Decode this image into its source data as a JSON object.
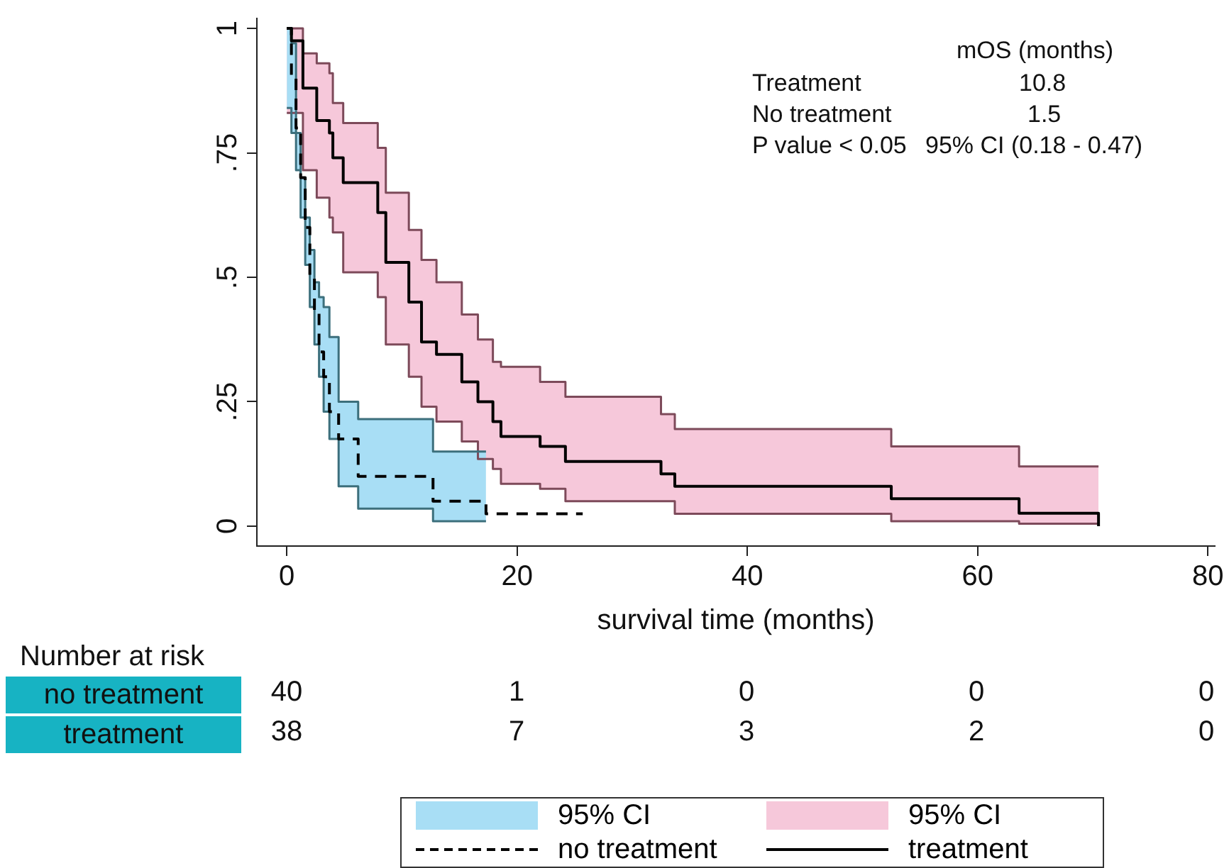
{
  "chart_data": {
    "type": "step",
    "xlabel": "survival time (months)",
    "xlim": [
      -2.6,
      80.6
    ],
    "xticks": [
      0,
      20,
      40,
      60,
      80
    ],
    "ylim": [
      -0.04,
      1.02
    ],
    "yticks": [
      {
        "value": 0,
        "label": "0"
      },
      {
        "value": 0.25,
        "label": ".25"
      },
      {
        "value": 0.5,
        "label": ".5"
      },
      {
        "value": 0.75,
        "label": ".75"
      },
      {
        "value": 1,
        "label": "1"
      }
    ],
    "grid": false,
    "legend": "bottom",
    "marker": "none",
    "series": [
      {
        "name": "95% CI",
        "type": "area",
        "color": "#a8def5",
        "x": [
          0,
          0.4,
          0.8,
          1.2,
          1.6,
          2.0,
          2.4,
          2.8,
          3.2,
          3.7,
          4.5,
          6.2,
          12.7,
          17.3
        ],
        "values": [
          null,
          null,
          null,
          null,
          null,
          null,
          null,
          null,
          null,
          null,
          null,
          null,
          null,
          null
        ],
        "lower": [
          0.84,
          0.79,
          0.715,
          0.62,
          0.525,
          0.44,
          0.365,
          0.3,
          0.23,
          0.175,
          0.08,
          0.035,
          0.01,
          0.01
        ],
        "upper": [
          1,
          0.97,
          0.79,
          0.7,
          0.62,
          0.555,
          0.49,
          0.46,
          0.44,
          0.38,
          0.25,
          0.215,
          0.15,
          0.15
        ]
      },
      {
        "type": "step",
        "color": "#3c6f7c",
        "x": [
          0,
          0.4,
          0.8,
          1.2,
          1.6,
          2.0,
          2.4,
          2.8,
          3.2,
          3.7,
          4.5,
          6.2,
          12.7,
          17.3
        ],
        "values": [
          0.84,
          0.79,
          0.715,
          0.62,
          0.525,
          0.44,
          0.365,
          0.3,
          0.23,
          0.175,
          0.08,
          0.035,
          0.01,
          0.01
        ]
      },
      {
        "type": "step",
        "color": "#3c6f7c",
        "x": [
          0,
          0.4,
          0.8,
          1.2,
          1.6,
          2.0,
          2.4,
          2.8,
          3.2,
          3.7,
          4.5,
          6.2,
          12.7,
          17.3
        ],
        "values": [
          1,
          0.97,
          0.79,
          0.7,
          0.62,
          0.555,
          0.49,
          0.46,
          0.44,
          0.38,
          0.25,
          0.215,
          0.15,
          0.15
        ]
      },
      {
        "name": "no treatment",
        "color": "#000000",
        "line_style": "dashed",
        "x": [
          0,
          0.4,
          0.8,
          1.2,
          1.6,
          2.0,
          2.4,
          2.8,
          3.2,
          3.7,
          4.5,
          6.2,
          12.7,
          17.3,
          25.7
        ],
        "values": [
          1,
          0.9,
          0.8,
          0.7,
          0.6,
          0.5,
          0.43,
          0.35,
          0.3,
          0.23,
          0.175,
          0.1,
          0.05,
          0.025,
          0.025
        ]
      },
      {
        "name": "95% CI",
        "type": "area",
        "color": "#f6c8da",
        "x": [
          0,
          0.4,
          1.4,
          2.6,
          3.7,
          4.0,
          4.9,
          7.9,
          8.6,
          10.6,
          11.7,
          13.0,
          15.2,
          16.6,
          17.9,
          18.6,
          22.0,
          24.2,
          32.5,
          33.7,
          52.5,
          63.6,
          70.5
        ],
        "values": [
          null,
          null,
          null,
          null,
          null,
          null,
          null,
          null,
          null,
          null,
          null,
          null,
          null,
          null,
          null,
          null,
          null,
          null,
          null,
          null,
          null,
          null,
          null
        ],
        "lower": [
          0.83,
          0.83,
          0.715,
          0.66,
          0.62,
          0.59,
          0.51,
          0.46,
          0.365,
          0.3,
          0.24,
          0.21,
          0.17,
          0.135,
          0.115,
          0.085,
          0.075,
          0.05,
          0.05,
          0.025,
          0.01,
          0.005,
          0.005
        ],
        "upper": [
          1,
          1,
          0.95,
          0.93,
          0.91,
          0.85,
          0.81,
          0.76,
          0.67,
          0.595,
          0.535,
          0.49,
          0.425,
          0.375,
          0.33,
          0.32,
          0.29,
          0.26,
          0.225,
          0.195,
          0.16,
          0.12,
          0.12
        ]
      },
      {
        "type": "step",
        "color": "#7d4a5a",
        "x": [
          0,
          0.4,
          1.4,
          2.6,
          3.7,
          4.0,
          4.9,
          7.9,
          8.6,
          10.6,
          11.7,
          13.0,
          15.2,
          16.6,
          17.9,
          18.6,
          22.0,
          24.2,
          32.5,
          33.7,
          52.5,
          63.6,
          70.5
        ],
        "values": [
          0.83,
          0.83,
          0.715,
          0.66,
          0.62,
          0.59,
          0.51,
          0.46,
          0.365,
          0.3,
          0.24,
          0.21,
          0.17,
          0.135,
          0.115,
          0.085,
          0.075,
          0.05,
          0.05,
          0.025,
          0.01,
          0.005,
          0.005
        ]
      },
      {
        "type": "step",
        "color": "#7d4a5a",
        "x": [
          0,
          0.4,
          1.4,
          2.6,
          3.7,
          4.0,
          4.9,
          7.9,
          8.6,
          10.6,
          11.7,
          13.0,
          15.2,
          16.6,
          17.9,
          18.6,
          22.0,
          24.2,
          32.5,
          33.7,
          52.5,
          63.6,
          70.5
        ],
        "values": [
          1,
          1,
          0.95,
          0.93,
          0.91,
          0.85,
          0.81,
          0.76,
          0.67,
          0.595,
          0.535,
          0.49,
          0.425,
          0.375,
          0.33,
          0.32,
          0.29,
          0.26,
          0.225,
          0.195,
          0.16,
          0.12,
          0.12
        ]
      },
      {
        "name": "treatment",
        "color": "#000000",
        "line_style": "solid",
        "x": [
          0,
          0.4,
          1.4,
          2.6,
          3.7,
          4.0,
          4.9,
          7.9,
          8.6,
          10.6,
          11.7,
          13.0,
          15.2,
          16.6,
          17.9,
          18.6,
          22.0,
          24.2,
          32.5,
          33.7,
          52.5,
          63.6,
          70.5
        ],
        "values": [
          1,
          0.975,
          0.88,
          0.815,
          0.79,
          0.74,
          0.69,
          0.63,
          0.53,
          0.45,
          0.37,
          0.345,
          0.29,
          0.25,
          0.21,
          0.18,
          0.16,
          0.13,
          0.105,
          0.08,
          0.055,
          0.026,
          0
        ]
      }
    ],
    "annotations": [
      "mOS (months)",
      "Treatment",
      "10.8",
      "No treatment",
      "1.5",
      "P value < 0.05",
      "95% CI (0.18 - 0.47)",
      "Number at risk",
      "no treatment",
      "40",
      "1",
      "0",
      "0",
      "0",
      "treatment",
      "38",
      "7",
      "3",
      "2",
      "0"
    ]
  }
}
